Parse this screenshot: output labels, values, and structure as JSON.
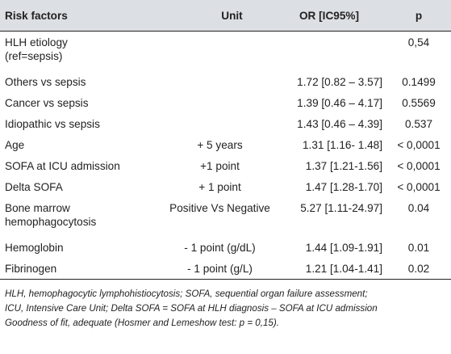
{
  "table": {
    "headers": [
      "Risk factors",
      "Unit",
      "OR [IC95%]",
      "p"
    ],
    "rows": [
      {
        "factor": "HLH etiology\n(ref=sepsis)",
        "unit": "",
        "or": "",
        "p": "0,54"
      },
      {
        "factor": "Others vs sepsis",
        "unit": "",
        "or": "1.72 [0.82 – 3.57]",
        "p": "0.1499"
      },
      {
        "factor": "Cancer vs sepsis",
        "unit": "",
        "or": "1.39 [0.46 – 4.17]",
        "p": "0.5569"
      },
      {
        "factor": "Idiopathic vs sepsis",
        "unit": "",
        "or": "1.43 [0.46 – 4.39]",
        "p": "0.537"
      },
      {
        "factor": "Age",
        "unit": "+ 5 years",
        "or": "1.31 [1.16- 1.48]",
        "p": "< 0,0001"
      },
      {
        "factor": "SOFA at ICU admission",
        "unit": "+1 point",
        "or": "1.37 [1.21-1.56]",
        "p": "< 0,0001"
      },
      {
        "factor": "Delta SOFA",
        "unit": "+ 1 point",
        "or": "1.47 [1.28-1.70]",
        "p": "< 0,0001"
      },
      {
        "factor": "Bone marrow\nhemophagocytosis",
        "unit": "Positive Vs Negative",
        "or": "5.27 [1.11-24.97]",
        "p": "0.04"
      },
      {
        "factor": "Hemoglobin",
        "unit": "- 1 point (g/dL)",
        "or": "1.44 [1.09-1.91]",
        "p": "0.01"
      },
      {
        "factor": "Fibrinogen",
        "unit": "- 1 point (g/L)",
        "or": "1.21 [1.04-1.41]",
        "p": "0.02"
      }
    ]
  },
  "notes": [
    "HLH, hemophagocytic lymphohistiocytosis; SOFA, sequential organ failure assessment;",
    "ICU, Intensive Care Unit; Delta SOFA = SOFA at HLH diagnosis – SOFA at ICU admission",
    "Goodness of fit, adequate (Hosmer and Lemeshow test: p = 0,15)."
  ]
}
